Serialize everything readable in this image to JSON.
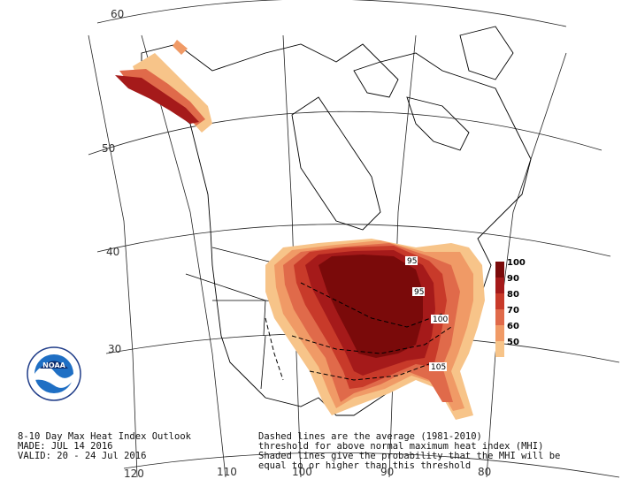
{
  "map": {
    "latitude_labels": [
      "60",
      "50",
      "40",
      "30"
    ],
    "longitude_labels": [
      "120",
      "110",
      "100",
      "90",
      "80"
    ],
    "contour_labels": [
      "95",
      "95",
      "100",
      "105"
    ]
  },
  "legend": {
    "items": [
      {
        "label": "100",
        "color": "#7a0a0a"
      },
      {
        "label": "90",
        "color": "#a51a1a"
      },
      {
        "label": "80",
        "color": "#c83a2a"
      },
      {
        "label": "70",
        "color": "#e06a4a"
      },
      {
        "label": "60",
        "color": "#f09a66"
      },
      {
        "label": "50",
        "color": "#f7c489"
      }
    ]
  },
  "captions": {
    "left_line1": "8-10 Day Max Heat Index Outlook",
    "left_line2": "MADE: JUL 14 2016",
    "left_line3": "VALID: 20 - 24 Jul 2016",
    "right_line1": "Dashed lines are the average (1981-2010)",
    "right_line2": "threshold for above normal maximum heat index (MHI)",
    "right_line3": "Shaded lines give the probability that the MHI will be",
    "right_line4": "equal to or higher than this threshold"
  },
  "logo": {
    "text": "NOAA",
    "icon": "noaa-logo-icon"
  }
}
